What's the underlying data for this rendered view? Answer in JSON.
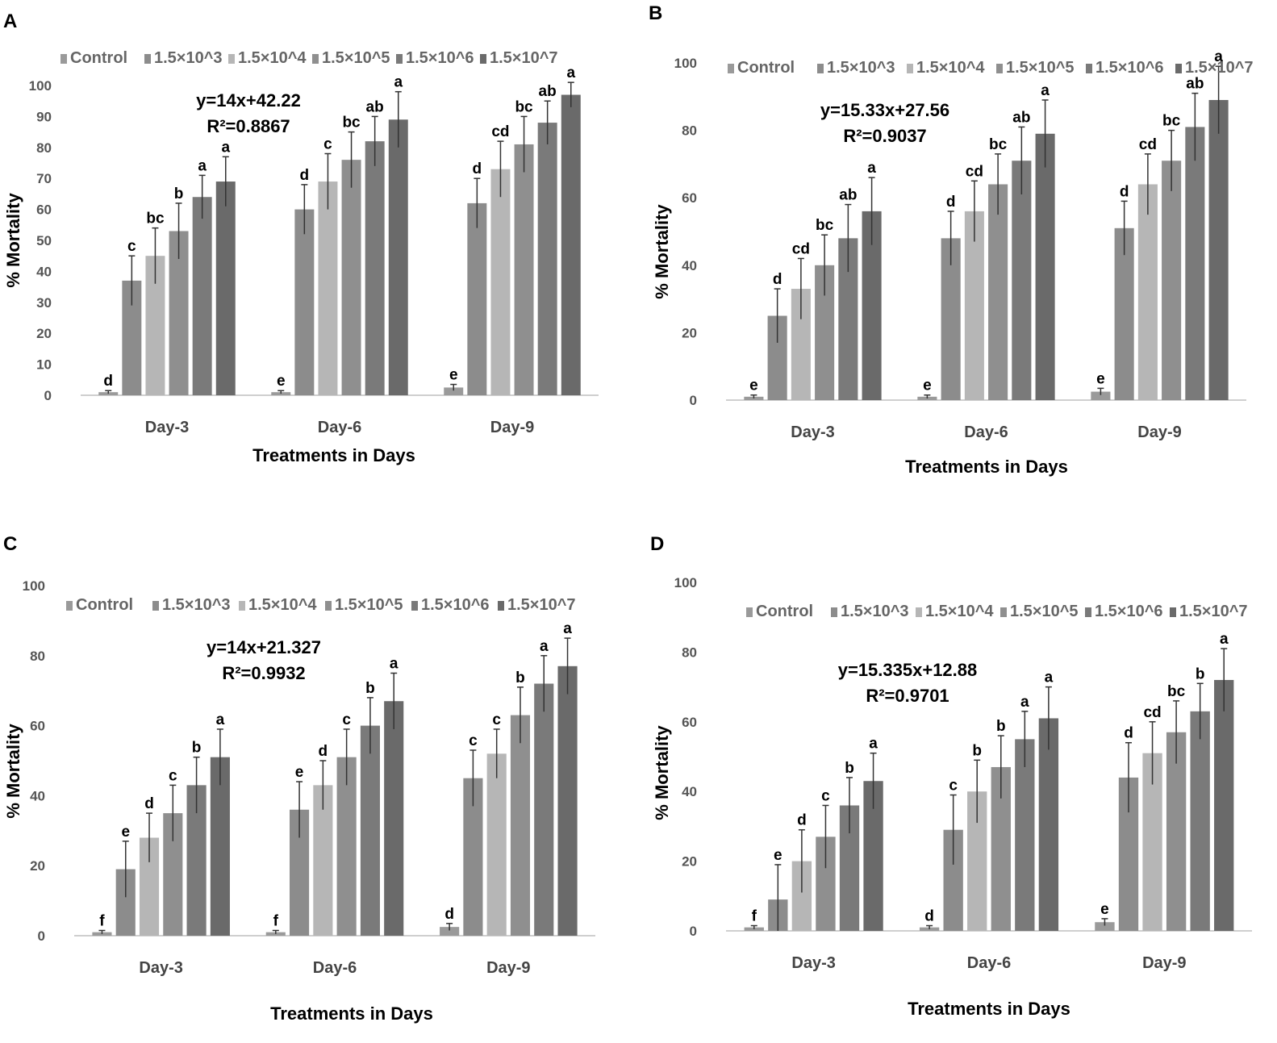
{
  "colors": {
    "series": [
      "#9a9a9a",
      "#8c8c8c",
      "#b6b6b6",
      "#8f8f8f",
      "#7a7a7a",
      "#6a6a6a"
    ],
    "error_bar": "#333333",
    "axis": "#cfcfcf"
  },
  "chart_data": [
    {
      "panel": "A",
      "type": "bar",
      "categories": [
        "Day-3",
        "Day-6",
        "Day-9"
      ],
      "legend": [
        "Control",
        "1.5×10^3",
        "1.5×10^4",
        "1.5×10^5",
        "1.5×10^6",
        "1.5×10^7"
      ],
      "ylim": [
        0,
        100
      ],
      "yticks": [
        "0",
        "10",
        "20",
        "30",
        "40",
        "50",
        "60",
        "70",
        "80",
        "90",
        "100"
      ],
      "ylabel": "% Mortality",
      "xlabel": "Treatments in Days",
      "equation": "y=14x+42.22",
      "r2_label": "R²=0.8867",
      "values": [
        [
          1,
          37,
          45,
          53,
          64,
          69
        ],
        [
          1,
          60,
          69,
          76,
          82,
          89
        ],
        [
          2.5,
          62,
          73,
          81,
          88,
          97
        ]
      ],
      "errors": [
        [
          0.5,
          8,
          9,
          9,
          7,
          8
        ],
        [
          0.5,
          8,
          9,
          9,
          8,
          9
        ],
        [
          1,
          8,
          9,
          9,
          7,
          4
        ]
      ],
      "significance": [
        [
          "d",
          "c",
          "bc",
          "b",
          "a",
          "a"
        ],
        [
          "e",
          "d",
          "c",
          "bc",
          "ab",
          "a"
        ],
        [
          "e",
          "d",
          "cd",
          "bc",
          "ab",
          "a"
        ]
      ]
    },
    {
      "panel": "B",
      "type": "bar",
      "categories": [
        "Day-3",
        "Day-6",
        "Day-9"
      ],
      "legend": [
        "Control",
        "1.5×10^3",
        "1.5×10^4",
        "1.5×10^5",
        "1.5×10^6",
        "1.5×10^7"
      ],
      "ylim": [
        0,
        100
      ],
      "yticks": [
        "0",
        "20",
        "40",
        "60",
        "80",
        "100"
      ],
      "ylabel": "% Mortality",
      "xlabel": "Treatments in Days",
      "equation": "y=15.33x+27.56",
      "r2_label": "R²=0.9037",
      "values": [
        [
          1,
          25,
          33,
          40,
          48,
          56
        ],
        [
          1,
          48,
          56,
          64,
          71,
          79
        ],
        [
          2.5,
          51,
          64,
          71,
          81,
          89
        ]
      ],
      "errors": [
        [
          0.5,
          8,
          9,
          9,
          10,
          10
        ],
        [
          0.5,
          8,
          9,
          9,
          10,
          10
        ],
        [
          1,
          8,
          9,
          9,
          10,
          10
        ]
      ],
      "significance": [
        [
          "e",
          "d",
          "cd",
          "bc",
          "ab",
          "a"
        ],
        [
          "e",
          "d",
          "cd",
          "bc",
          "ab",
          "a"
        ],
        [
          "e",
          "d",
          "cd",
          "bc",
          "ab",
          "a"
        ]
      ]
    },
    {
      "panel": "C",
      "type": "bar",
      "categories": [
        "Day-3",
        "Day-6",
        "Day-9"
      ],
      "legend": [
        "Control",
        "1.5×10^3",
        "1.5×10^4",
        "1.5×10^5",
        "1.5×10^6",
        "1.5×10^7"
      ],
      "ylim": [
        0,
        100
      ],
      "yticks": [
        "0",
        "20",
        "40",
        "60",
        "80",
        "100"
      ],
      "ylabel": "% Mortality",
      "xlabel": "Treatments in Days",
      "equation": "y=14x+21.327",
      "r2_label": "R²=0.9932",
      "values": [
        [
          1,
          19,
          28,
          35,
          43,
          51
        ],
        [
          1,
          36,
          43,
          51,
          60,
          67
        ],
        [
          2.5,
          45,
          52,
          63,
          72,
          77
        ]
      ],
      "errors": [
        [
          0.5,
          8,
          7,
          8,
          8,
          8
        ],
        [
          0.5,
          8,
          7,
          8,
          8,
          8
        ],
        [
          1,
          8,
          7,
          8,
          8,
          8
        ]
      ],
      "significance": [
        [
          "f",
          "e",
          "d",
          "c",
          "b",
          "a"
        ],
        [
          "f",
          "e",
          "d",
          "c",
          "b",
          "a"
        ],
        [
          "d",
          "c",
          "c",
          "b",
          "a",
          "a"
        ]
      ]
    },
    {
      "panel": "D",
      "type": "bar",
      "categories": [
        "Day-3",
        "Day-6",
        "Day-9"
      ],
      "legend": [
        "Control",
        "1.5×10^3",
        "1.5×10^4",
        "1.5×10^5",
        "1.5×10^6",
        "1.5×10^7"
      ],
      "ylim": [
        0,
        100
      ],
      "yticks": [
        "0",
        "20",
        "40",
        "60",
        "80",
        "100"
      ],
      "ylabel": "% Mortality",
      "xlabel": "Treatments in Days",
      "equation": "y=15.335x+12.88",
      "r2_label": "R²=0.9701",
      "values": [
        [
          1,
          9,
          20,
          27,
          36,
          43
        ],
        [
          1,
          29,
          40,
          47,
          55,
          61
        ],
        [
          2.5,
          44,
          51,
          57,
          63,
          72
        ]
      ],
      "errors": [
        [
          0.5,
          10,
          9,
          9,
          8,
          8
        ],
        [
          0.5,
          10,
          9,
          9,
          8,
          9
        ],
        [
          1,
          10,
          9,
          9,
          8,
          9
        ]
      ],
      "significance": [
        [
          "f",
          "e",
          "d",
          "c",
          "b",
          "a"
        ],
        [
          "d",
          "c",
          "b",
          "b",
          "a",
          "a"
        ],
        [
          "e",
          "d",
          "cd",
          "bc",
          "b",
          "a"
        ]
      ]
    }
  ]
}
